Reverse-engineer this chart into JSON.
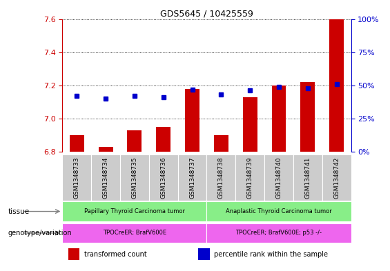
{
  "title": "GDS5645 / 10425559",
  "samples": [
    "GSM1348733",
    "GSM1348734",
    "GSM1348735",
    "GSM1348736",
    "GSM1348737",
    "GSM1348738",
    "GSM1348739",
    "GSM1348740",
    "GSM1348741",
    "GSM1348742"
  ],
  "transformed_count": [
    6.9,
    6.83,
    6.93,
    6.95,
    7.18,
    6.9,
    7.13,
    7.2,
    7.22,
    7.6
  ],
  "percentile_rank": [
    42,
    40,
    42,
    41,
    47,
    43,
    46,
    49,
    48,
    51
  ],
  "ylim_left": [
    6.8,
    7.6
  ],
  "ylim_right": [
    0,
    100
  ],
  "yticks_left": [
    6.8,
    7.0,
    7.2,
    7.4,
    7.6
  ],
  "yticks_right": [
    0,
    25,
    50,
    75,
    100
  ],
  "bar_color": "#cc0000",
  "dot_color": "#0000cc",
  "tissue_groups": [
    {
      "label": "Papillary Thyroid Carcinoma tumor",
      "start": 0,
      "end": 5,
      "color": "#88ee88"
    },
    {
      "label": "Anaplastic Thyroid Carcinoma tumor",
      "start": 5,
      "end": 10,
      "color": "#88ee88"
    }
  ],
  "genotype_groups": [
    {
      "label": "TPOCreER; BrafV600E",
      "start": 0,
      "end": 5,
      "color": "#ee66ee"
    },
    {
      "label": "TPOCreER; BrafV600E; p53 -/-",
      "start": 5,
      "end": 10,
      "color": "#ee66ee"
    }
  ],
  "sample_bg_color": "#cccccc",
  "tissue_label": "tissue",
  "genotype_label": "genotype/variation",
  "legend_items": [
    {
      "color": "#cc0000",
      "label": "transformed count"
    },
    {
      "color": "#0000cc",
      "label": "percentile rank within the sample"
    }
  ],
  "left_axis_color": "#cc0000",
  "right_axis_color": "#0000cc"
}
